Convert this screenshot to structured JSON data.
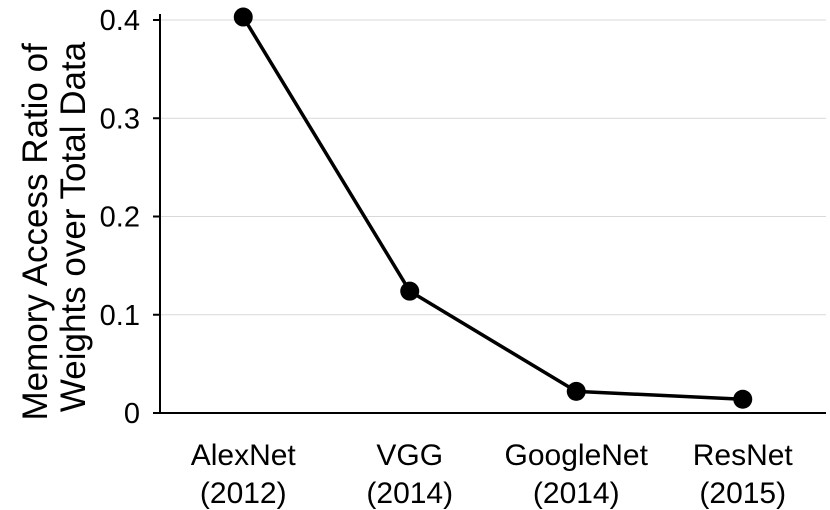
{
  "chart_data": {
    "type": "line",
    "categories": [
      "AlexNet (2012)",
      "VGG (2014)",
      "GoogleNet (2014)",
      "ResNet (2015)"
    ],
    "category_lines": [
      [
        "AlexNet",
        "(2012)"
      ],
      [
        "VGG",
        "(2014)"
      ],
      [
        "GoogleNet",
        "(2014)"
      ],
      [
        "ResNet",
        "(2015)"
      ]
    ],
    "values": [
      0.403,
      0.124,
      0.022,
      0.014
    ],
    "ylabel_lines": [
      "Memory Access Ratio of",
      "Weights over Total Data"
    ],
    "xlabel": "",
    "ylim": [
      0,
      0.4
    ],
    "yticks": [
      0,
      0.1,
      0.2,
      0.3,
      0.4
    ],
    "ytick_labels": [
      "0",
      "0.1",
      "0.2",
      "0.3",
      "0.4"
    ],
    "grid": true,
    "colors": {
      "line": "#000000",
      "marker": "#000000",
      "grid": "#d9d9d9",
      "axis": "#000000"
    }
  }
}
